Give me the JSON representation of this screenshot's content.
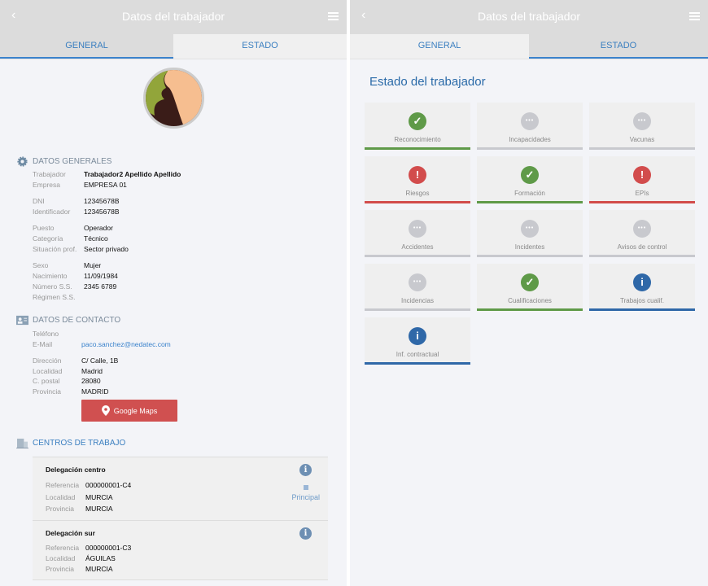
{
  "header": {
    "title": "Datos del trabajador",
    "back": "‹"
  },
  "tabs": {
    "general": "GENERAL",
    "estado": "ESTADO"
  },
  "general": {
    "section_datos": "DATOS GENERALES",
    "rows": [
      {
        "label": "Trabajador",
        "value": "Trabajador2 Apellido Apellido"
      },
      {
        "label": "Empresa",
        "value": "EMPRESA 01"
      },
      {
        "label": "DNI",
        "value": "12345678B"
      },
      {
        "label": "Identificador",
        "value": "12345678B"
      },
      {
        "label": "Puesto",
        "value": "Operador"
      },
      {
        "label": "Categoría",
        "value": "Técnico"
      },
      {
        "label": "Situación prof.",
        "value": "Sector privado"
      },
      {
        "label": "Sexo",
        "value": "Mujer"
      },
      {
        "label": "Nacimiento",
        "value": "11/09/1984"
      },
      {
        "label": "Número S.S.",
        "value": "2345 6789"
      },
      {
        "label": "Régimen S.S.",
        "value": ""
      }
    ],
    "section_contacto": "DATOS DE CONTACTO",
    "contact": [
      {
        "label": "Teléfono",
        "value": ""
      },
      {
        "label": "E-Mail",
        "value": "paco.sanchez@nedatec.com"
      },
      {
        "label": "Dirección",
        "value": "C/ Calle, 1B"
      },
      {
        "label": "Localidad",
        "value": "Madrid"
      },
      {
        "label": "C. postal",
        "value": "28080"
      },
      {
        "label": "Provincia",
        "value": "MADRID"
      }
    ],
    "maps_button": "Google Maps",
    "section_centros": "CENTROS DE TRABAJO",
    "centros": [
      {
        "name": "Delegación centro",
        "ref_label": "Referencia",
        "ref": "000000001-C4",
        "loc_label": "Localidad",
        "loc": "MURCIA",
        "prov_label": "Provincia",
        "prov": "MURCIA",
        "principal": "Principal"
      },
      {
        "name": "Delegación sur",
        "ref_label": "Referencia",
        "ref": "000000001-C3",
        "loc_label": "Localidad",
        "loc": "ÁGUILAS",
        "prov_label": "Provincia",
        "prov": "MURCIA"
      }
    ]
  },
  "estado": {
    "title": "Estado del trabajador",
    "colors": {
      "ok": "#5f9a48",
      "error": "#d24c4c",
      "pending": "#c8c9ce",
      "info": "#2f68a8"
    },
    "tiles": [
      {
        "label": "Reconocimiento",
        "status": "ok"
      },
      {
        "label": "Incapacidades",
        "status": "pending"
      },
      {
        "label": "Vacunas",
        "status": "pending"
      },
      {
        "label": "Riesgos",
        "status": "error"
      },
      {
        "label": "Formación",
        "status": "ok"
      },
      {
        "label": "EPIs",
        "status": "error"
      },
      {
        "label": "Accidentes",
        "status": "pending"
      },
      {
        "label": "Incidentes",
        "status": "pending"
      },
      {
        "label": "Avisos de control",
        "status": "pending"
      },
      {
        "label": "Incidencias",
        "status": "pending"
      },
      {
        "label": "Cualificaciones",
        "status": "ok"
      },
      {
        "label": "Trabajos cualif.",
        "status": "info"
      },
      {
        "label": "Inf. contractual",
        "status": "info"
      }
    ]
  }
}
